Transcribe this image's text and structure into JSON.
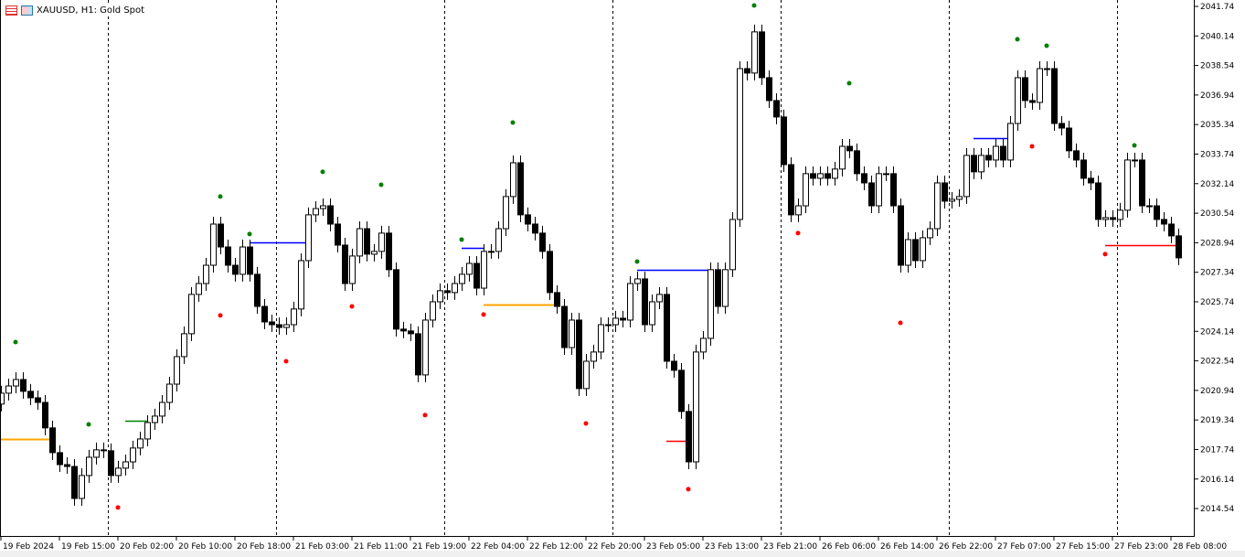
{
  "window": {
    "title": "XAUUSD, H1:  Gold Spot",
    "icons": [
      "chart-list-icon",
      "chart-properties-icon"
    ]
  },
  "colors": {
    "bull_body": "#ffffff",
    "bear_body": "#000000",
    "outline": "#000000",
    "fractal_up": "#008000",
    "fractal_down": "#ff0000",
    "separator": "#000000"
  },
  "chart_data": {
    "type": "candlestick",
    "symbol": "XAUUSD",
    "timeframe": "H1",
    "ylim": [
      2013.8,
      2042.1
    ],
    "y_ticks": [
      "2041.74",
      "2040.14",
      "2038.54",
      "2036.94",
      "2035.34",
      "2033.74",
      "2032.14",
      "2030.54",
      "2028.94",
      "2027.34",
      "2025.74",
      "2024.14",
      "2022.54",
      "2020.94",
      "2019.34",
      "2017.74",
      "2016.14",
      "2014.54"
    ],
    "x_ticks": [
      "19 Feb 2024",
      "19 Feb 15:00",
      "20 Feb 02:00",
      "20 Feb 10:00",
      "20 Feb 18:00",
      "21 Feb 03:00",
      "21 Feb 11:00",
      "21 Feb 19:00",
      "22 Feb 04:00",
      "22 Feb 12:00",
      "22 Feb 20:00",
      "23 Feb 05:00",
      "23 Feb 13:00",
      "23 Feb 21:00",
      "26 Feb 06:00",
      "26 Feb 14:00",
      "26 Feb 22:00",
      "27 Feb 07:00",
      "27 Feb 15:00",
      "27 Feb 23:00",
      "28 Feb 08:00"
    ],
    "x_tick_every_bars": 8,
    "day_separator_bars": [
      15,
      38,
      61,
      84,
      107,
      130,
      153
    ],
    "first_open": 2020.2,
    "close": [
      2020.79,
      2021.18,
      2021.53,
      2020.89,
      2020.54,
      2020.29,
      2018.91,
      2017.57,
      2016.92,
      2016.82,
      2015.09,
      2016.33,
      2017.32,
      2017.72,
      2017.67,
      2016.33,
      2016.73,
      2017.07,
      2017.82,
      2018.31,
      2019.2,
      2019.55,
      2020.29,
      2021.28,
      2022.77,
      2024.01,
      2026.14,
      2026.73,
      2027.72,
      2029.95,
      2028.71,
      2027.72,
      2027.23,
      2028.71,
      2027.23,
      2025.49,
      2024.65,
      2024.5,
      2024.35,
      2024.5,
      2025.35,
      2027.97,
      2030.45,
      2030.79,
      2030.94,
      2029.95,
      2028.81,
      2026.73,
      2028.22,
      2029.7,
      2028.32,
      2028.47,
      2029.46,
      2027.48,
      2024.26,
      2024.16,
      2024.01,
      2021.78,
      2024.75,
      2025.74,
      2026.34,
      2026.24,
      2026.73,
      2027.23,
      2027.82,
      2026.48,
      2028.47,
      2028.47,
      2029.7,
      2031.44,
      2033.27,
      2030.45,
      2029.95,
      2029.46,
      2028.47,
      2026.24,
      2025.49,
      2023.26,
      2024.75,
      2021.04,
      2022.52,
      2023.02,
      2024.5,
      2024.5,
      2024.85,
      2024.75,
      2026.73,
      2026.98,
      2024.5,
      2025.74,
      2026.14,
      2022.52,
      2022.03,
      2019.8,
      2017.07,
      2023.02,
      2023.76,
      2027.48,
      2025.49,
      2027.48,
      2030.2,
      2038.37,
      2038.13,
      2040.36,
      2037.88,
      2036.64,
      2035.75,
      2033.17,
      2030.45,
      2030.94,
      2032.68,
      2032.43,
      2032.68,
      2032.43,
      2032.93,
      2034.16,
      2033.92,
      2032.68,
      2032.18,
      2030.94,
      2032.68,
      2032.68,
      2030.94,
      2027.72,
      2029.11,
      2027.97,
      2029.21,
      2029.7,
      2032.18,
      2031.19,
      2031.29,
      2031.44,
      2033.67,
      2032.78,
      2033.67,
      2033.42,
      2034.16,
      2033.42,
      2035.4,
      2037.88,
      2036.64,
      2036.54,
      2038.37,
      2038.37,
      2035.4,
      2035.15,
      2033.92,
      2033.42,
      2032.43,
      2032.18,
      2030.2,
      2030.3,
      2030.2,
      2030.7,
      2033.42,
      2033.42,
      2030.94,
      2030.94,
      2030.2,
      2029.95,
      2029.31,
      2028.12
    ],
    "fractals_up": [
      [
        2,
        2023.56
      ],
      [
        12,
        2019.1
      ],
      [
        30,
        2031.44
      ],
      [
        34,
        2029.41
      ],
      [
        44,
        2032.78
      ],
      [
        52,
        2032.08
      ],
      [
        63,
        2029.11
      ],
      [
        70,
        2035.45
      ],
      [
        87,
        2027.92
      ],
      [
        103,
        2041.79
      ],
      [
        116,
        2037.58
      ],
      [
        139,
        2039.96
      ],
      [
        143,
        2039.61
      ],
      [
        155,
        2034.21
      ]
    ],
    "fractals_down": [
      [
        16,
        2014.6
      ],
      [
        30,
        2025.0
      ],
      [
        39,
        2022.52
      ],
      [
        48,
        2025.49
      ],
      [
        58,
        2019.6
      ],
      [
        66,
        2025.05
      ],
      [
        80,
        2019.15
      ],
      [
        94,
        2015.59
      ],
      [
        109,
        2029.46
      ],
      [
        123,
        2024.6
      ],
      [
        141,
        2034.16
      ],
      [
        151,
        2028.32
      ]
    ],
    "levels": [
      {
        "from": 0,
        "to": 7,
        "price": 2018.31,
        "color": "#ffa500"
      },
      {
        "from": 17,
        "to": 20,
        "price": 2019.3,
        "color": "#008000"
      },
      {
        "from": 34,
        "to": 42,
        "price": 2028.96,
        "color": "#0000ff"
      },
      {
        "from": 63,
        "to": 66,
        "price": 2028.66,
        "color": "#0000ff"
      },
      {
        "from": 66,
        "to": 76,
        "price": 2025.59,
        "color": "#ffa500"
      },
      {
        "from": 87,
        "to": 97,
        "price": 2027.48,
        "color": "#0000ff"
      },
      {
        "from": 91,
        "to": 94,
        "price": 2018.21,
        "color": "#ff0000"
      },
      {
        "from": 133,
        "to": 138,
        "price": 2034.61,
        "color": "#0000ff"
      },
      {
        "from": 151,
        "to": 161,
        "price": 2028.81,
        "color": "#ff0000"
      }
    ]
  }
}
